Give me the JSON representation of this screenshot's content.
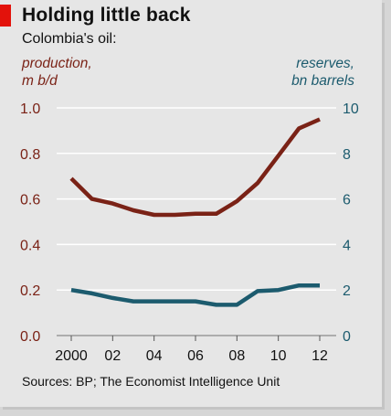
{
  "header": {
    "title": "Holding little back",
    "subtitle": "Colombia's oil:"
  },
  "colors": {
    "accent": "#e3120b",
    "production": "#7a2216",
    "reserves": "#1c5b6e",
    "grid": "#ffffff",
    "tick_left": "#7a2216",
    "tick_right": "#1c5b6e"
  },
  "footer": {
    "source": "Sources: BP; The Economist Intelligence Unit"
  },
  "chart_data": {
    "type": "line",
    "title": "Holding little back",
    "subtitle": "Colombia's oil:",
    "x": [
      2000,
      2001,
      2002,
      2003,
      2004,
      2005,
      2006,
      2007,
      2008,
      2009,
      2010,
      2011,
      2012
    ],
    "x_ticks": [
      2000,
      2002,
      2004,
      2006,
      2008,
      2010,
      2012
    ],
    "x_tick_labels": [
      "2000",
      "02",
      "04",
      "06",
      "08",
      "10",
      "12"
    ],
    "ylabel_left": [
      "production,",
      "m b/d"
    ],
    "ylabel_right": [
      "reserves,",
      "bn barrels"
    ],
    "ylim_left": [
      0,
      1.0
    ],
    "ylim_right": [
      0,
      10
    ],
    "y_ticks_left": [
      "0.0",
      "0.2",
      "0.4",
      "0.6",
      "0.8",
      "1.0"
    ],
    "y_ticks_right": [
      "0",
      "2",
      "4",
      "6",
      "8",
      "10"
    ],
    "grid": true,
    "series": [
      {
        "name": "production, m b/d",
        "axis": "left",
        "values": [
          0.69,
          0.6,
          0.58,
          0.55,
          0.53,
          0.53,
          0.535,
          0.535,
          0.59,
          0.67,
          0.79,
          0.91,
          0.95
        ]
      },
      {
        "name": "reserves, bn barrels",
        "axis": "right",
        "values": [
          2.0,
          1.85,
          1.65,
          1.5,
          1.5,
          1.5,
          1.5,
          1.35,
          1.35,
          1.95,
          2.0,
          2.2,
          2.2
        ]
      }
    ]
  }
}
